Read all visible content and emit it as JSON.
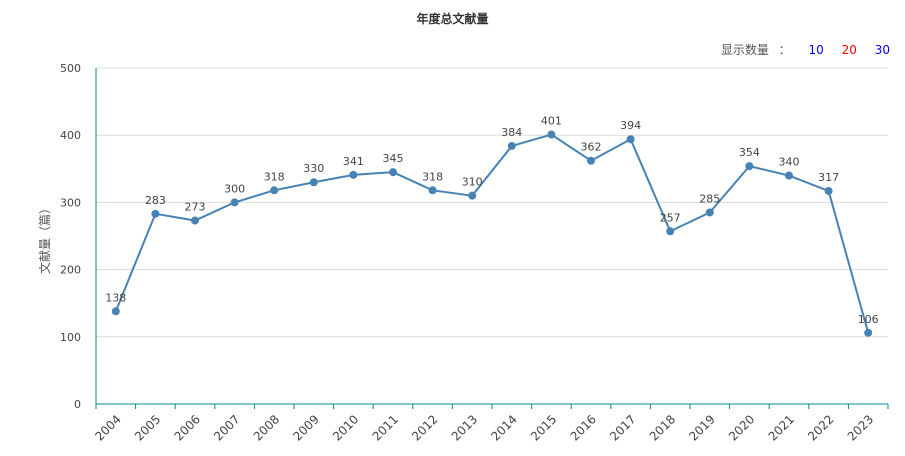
{
  "display_count": {
    "label": "显示数量",
    "separator": "：",
    "options": [
      {
        "label": "10",
        "color": "#0000ff"
      },
      {
        "label": "20",
        "color": "#ff0000"
      },
      {
        "label": "30",
        "color": "#0000ff"
      }
    ]
  },
  "chart_data": {
    "type": "line",
    "title": "年度总文献量",
    "xlabel": "",
    "ylabel": "文献量（篇）",
    "categories": [
      "2004",
      "2005",
      "2006",
      "2007",
      "2008",
      "2009",
      "2010",
      "2011",
      "2012",
      "2013",
      "2014",
      "2015",
      "2016",
      "2017",
      "2018",
      "2019",
      "2020",
      "2021",
      "2022",
      "2023"
    ],
    "values": [
      138,
      283,
      273,
      300,
      318,
      330,
      341,
      345,
      318,
      310,
      384,
      401,
      362,
      394,
      257,
      285,
      354,
      340,
      317,
      106
    ],
    "ylim": [
      0,
      500
    ],
    "yticks": [
      0,
      100,
      200,
      300,
      400,
      500
    ],
    "grid": true,
    "line_color": "#4682b4",
    "axis_color": "#008b8b"
  }
}
